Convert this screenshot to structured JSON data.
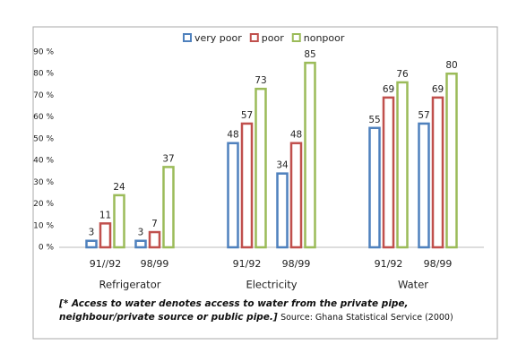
{
  "chart_data": {
    "type": "bar",
    "categories": [
      "91//92",
      "98/99",
      "91/92",
      "98/99",
      "91/92",
      "98/99"
    ],
    "groups": [
      "Refrigerator",
      "Electricity",
      "Water"
    ],
    "series": [
      {
        "name": "very poor",
        "color": "#4f81bd",
        "values": [
          3,
          3,
          48,
          34,
          55,
          57
        ]
      },
      {
        "name": "poor",
        "color": "#c0504d",
        "values": [
          11,
          7,
          57,
          48,
          69,
          69
        ]
      },
      {
        "name": "nonpoor",
        "color": "#9bbb59",
        "values": [
          24,
          37,
          73,
          85,
          76,
          80
        ]
      }
    ],
    "ylim": [
      0,
      90
    ],
    "yticks": [
      {
        "value": 0,
        "label": "0 %"
      },
      {
        "value": 10,
        "label": "10 %"
      },
      {
        "value": 20,
        "label": "20 %"
      },
      {
        "value": 30,
        "label": "30 %"
      },
      {
        "value": 40,
        "label": "40 %"
      },
      {
        "value": 50,
        "label": "50 %"
      },
      {
        "value": 60,
        "label": "60 %"
      },
      {
        "value": 70,
        "label": "70 %"
      },
      {
        "value": 80,
        "label": "80 %"
      },
      {
        "value": 90,
        "label": "90 %"
      }
    ],
    "grid": false,
    "legend": "top",
    "note": "[* Access to water denotes access to water from the private pipe, neighbour/private source or public pipe.]",
    "source": "Source: Ghana Statistical Service (2000)"
  }
}
